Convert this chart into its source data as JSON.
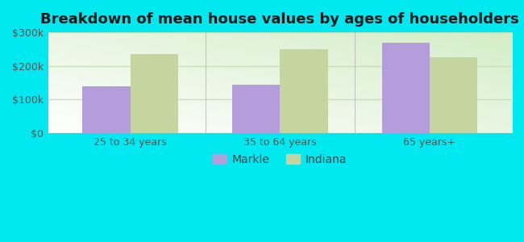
{
  "title": "Breakdown of mean house values by ages of householders",
  "categories": [
    "25 to 34 years",
    "35 to 64 years",
    "65 years+"
  ],
  "markle_values": [
    140000,
    145000,
    270000
  ],
  "indiana_values": [
    235000,
    250000,
    225000
  ],
  "markle_color": "#b39ddb",
  "indiana_color": "#c5d5a0",
  "background_outer": "#00e8f0",
  "background_inner_colors": [
    "#d4eec8",
    "#ffffff"
  ],
  "ylim": [
    0,
    300000
  ],
  "yticks": [
    0,
    100000,
    200000,
    300000
  ],
  "ytick_labels": [
    "$0",
    "$100k",
    "$200k",
    "$300k"
  ],
  "bar_width": 0.32,
  "legend_labels": [
    "Markle",
    "Indiana"
  ],
  "title_fontsize": 13,
  "tick_fontsize": 9,
  "legend_fontsize": 10,
  "tick_color": "#555555",
  "grid_color": "#c8e0b8",
  "divider_color": "#aaaaaa"
}
